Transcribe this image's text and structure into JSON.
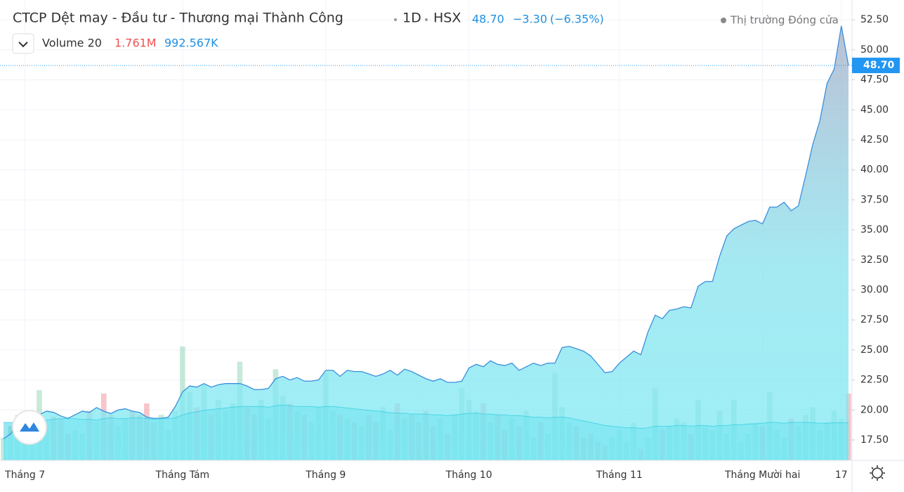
{
  "chart_data": {
    "type": "area",
    "header": {
      "title": "CTCP Dệt may - Đầu tư - Thương mại Thành Công",
      "interval": "1D",
      "exchange": "HSX",
      "price": "48.70",
      "change": "−3.30",
      "change_pct": "(−6.35%)",
      "status": "Thị trường Đóng cửa"
    },
    "volume_legend": {
      "name": "Volume 20",
      "last": {
        "value": 1.761,
        "label": "1.761M"
      },
      "ma": {
        "value": 0.992567,
        "label": "992.567K"
      }
    },
    "categories": [
      null,
      null,
      null,
      "Tháng 7",
      null,
      null,
      null,
      null,
      null,
      null,
      null,
      null,
      null,
      null,
      null,
      null,
      null,
      null,
      null,
      null,
      null,
      null,
      null,
      null,
      null,
      "Tháng Tám",
      null,
      null,
      null,
      null,
      null,
      null,
      null,
      null,
      null,
      null,
      null,
      null,
      null,
      null,
      null,
      null,
      null,
      null,
      null,
      "Tháng 9",
      null,
      null,
      null,
      null,
      null,
      null,
      null,
      null,
      null,
      null,
      null,
      null,
      null,
      null,
      null,
      null,
      null,
      null,
      null,
      "Tháng 10",
      null,
      null,
      null,
      null,
      null,
      null,
      null,
      null,
      null,
      null,
      null,
      null,
      null,
      null,
      null,
      null,
      null,
      null,
      null,
      null,
      "Tháng 11",
      null,
      null,
      null,
      null,
      null,
      null,
      null,
      null,
      null,
      null,
      null,
      null,
      null,
      null,
      null,
      null,
      null,
      null,
      null,
      "Tháng Mười hai",
      null,
      null,
      null,
      null,
      null,
      null,
      null,
      null,
      null,
      null,
      "17",
      null
    ],
    "series": [
      {
        "name": "Close",
        "color": "#3a8fdc",
        "values": [
          17.6,
          18.0,
          18.9,
          19.2,
          19.5,
          19.6,
          19.9,
          19.8,
          19.5,
          19.3,
          19.6,
          19.9,
          19.8,
          20.2,
          19.9,
          19.7,
          20.0,
          20.1,
          19.9,
          19.8,
          19.4,
          19.3,
          19.3,
          19.4,
          20.3,
          21.5,
          22.0,
          21.9,
          22.2,
          21.9,
          22.1,
          22.2,
          22.2,
          22.2,
          22.0,
          21.7,
          21.7,
          21.8,
          22.6,
          22.8,
          22.5,
          22.7,
          22.4,
          22.4,
          22.5,
          23.3,
          23.3,
          22.8,
          23.3,
          23.2,
          23.2,
          23.0,
          22.8,
          23.0,
          23.3,
          22.9,
          23.4,
          23.2,
          22.9,
          22.6,
          22.4,
          22.6,
          22.3,
          22.3,
          22.4,
          23.5,
          23.8,
          23.6,
          24.1,
          23.8,
          23.7,
          23.9,
          23.3,
          23.6,
          23.9,
          23.7,
          23.9,
          23.9,
          25.2,
          25.3,
          25.1,
          24.9,
          24.5,
          23.8,
          23.1,
          23.2,
          23.9,
          24.4,
          24.9,
          24.6,
          26.5,
          27.9,
          27.6,
          28.3,
          28.4,
          28.6,
          28.5,
          30.3,
          30.7,
          30.7,
          32.8,
          34.5,
          35.1,
          35.4,
          35.7,
          35.8,
          35.5,
          36.9,
          36.9,
          37.3,
          36.6,
          37.0,
          39.5,
          42.1,
          44.1,
          47.2,
          48.4,
          52.0,
          48.7
        ]
      },
      {
        "name": "Volume",
        "axis": "y2",
        "up_color": "rgba(80,190,140,0.32)",
        "down_color": "rgba(235,90,100,0.35)",
        "values": [
          0.6,
          0.9,
          1.2,
          0.8,
          1.0,
          1.85,
          0.9,
          1.15,
          1.1,
          0.7,
          0.8,
          0.7,
          1.3,
          1.0,
          1.76,
          1.2,
          0.9,
          1.1,
          1.3,
          1.2,
          1.5,
          1.0,
          1.2,
          0.8,
          1.3,
          3.0,
          1.8,
          1.4,
          2.0,
          1.2,
          1.6,
          1.3,
          1.5,
          2.6,
          1.4,
          1.2,
          1.6,
          1.1,
          2.4,
          1.7,
          1.5,
          1.3,
          1.2,
          1.0,
          1.4,
          2.3,
          1.3,
          1.2,
          1.1,
          1.0,
          0.9,
          1.2,
          1.0,
          1.4,
          0.8,
          1.5,
          1.1,
          1.2,
          1.0,
          1.3,
          0.9,
          1.1,
          0.7,
          1.2,
          1.9,
          1.6,
          1.3,
          1.5,
          1.0,
          1.2,
          0.8,
          1.1,
          0.9,
          1.3,
          0.6,
          1.0,
          0.7,
          2.3,
          1.4,
          1.0,
          0.9,
          0.6,
          0.7,
          0.5,
          0.4,
          0.6,
          0.8,
          0.5,
          1.0,
          0.3,
          0.6,
          1.9,
          0.8,
          0.9,
          1.1,
          1.0,
          0.7,
          1.6,
          0.9,
          0.8,
          1.3,
          0.7,
          1.6,
          0.5,
          0.7,
          1.0,
          0.9,
          1.8,
          0.8,
          0.6,
          1.1,
          0.9,
          1.2,
          1.4,
          0.8,
          1.0,
          1.3,
          1.1,
          1.761
        ]
      },
      {
        "name": "Volume MA",
        "axis": "y2",
        "color": "#20c8e0",
        "values": [
          1.0,
          1.0,
          1.0,
          1.02,
          1.04,
          1.06,
          1.06,
          1.08,
          1.1,
          1.1,
          1.1,
          1.08,
          1.08,
          1.06,
          1.1,
          1.12,
          1.1,
          1.1,
          1.12,
          1.12,
          1.1,
          1.08,
          1.1,
          1.1,
          1.12,
          1.2,
          1.25,
          1.28,
          1.32,
          1.34,
          1.36,
          1.38,
          1.4,
          1.42,
          1.42,
          1.42,
          1.42,
          1.4,
          1.44,
          1.46,
          1.44,
          1.42,
          1.42,
          1.42,
          1.4,
          1.42,
          1.42,
          1.4,
          1.38,
          1.36,
          1.34,
          1.32,
          1.3,
          1.28,
          1.26,
          1.24,
          1.24,
          1.22,
          1.22,
          1.22,
          1.2,
          1.2,
          1.18,
          1.2,
          1.22,
          1.24,
          1.24,
          1.22,
          1.22,
          1.2,
          1.2,
          1.18,
          1.18,
          1.16,
          1.14,
          1.14,
          1.12,
          1.14,
          1.14,
          1.12,
          1.08,
          1.04,
          1.0,
          0.96,
          0.92,
          0.9,
          0.88,
          0.86,
          0.86,
          0.84,
          0.86,
          0.9,
          0.9,
          0.9,
          0.92,
          0.92,
          0.9,
          0.92,
          0.92,
          0.9,
          0.92,
          0.92,
          0.94,
          0.94,
          0.96,
          0.96,
          0.98,
          1.0,
          1.0,
          0.98,
          1.0,
          1.0,
          1.0,
          0.99,
          0.98,
          0.98,
          0.99,
          0.99,
          0.992567
        ]
      }
    ],
    "price_marker": {
      "value": 48.7,
      "label": "48.70"
    },
    "ylim": [
      15.8,
      54.15
    ],
    "yticks": [
      {
        "value": 17.5,
        "label": "17.50"
      },
      {
        "value": 20,
        "label": "20.00"
      },
      {
        "value": 22.5,
        "label": "22.50"
      },
      {
        "value": 25,
        "label": "25.00"
      },
      {
        "value": 27.5,
        "label": "27.50"
      },
      {
        "value": 30,
        "label": "30.00"
      },
      {
        "value": 32.5,
        "label": "32.50"
      },
      {
        "value": 35,
        "label": "35.00"
      },
      {
        "value": 37.5,
        "label": "37.50"
      },
      {
        "value": 40,
        "label": "40.00"
      },
      {
        "value": 42.5,
        "label": "42.50"
      },
      {
        "value": 45,
        "label": "45.00"
      },
      {
        "value": 47.5,
        "label": "47.50"
      },
      {
        "value": 50,
        "label": "50.00"
      },
      {
        "value": 52.5,
        "label": "52.50"
      }
    ],
    "y2lim": [
      0,
      12.13
    ],
    "grid": true
  }
}
